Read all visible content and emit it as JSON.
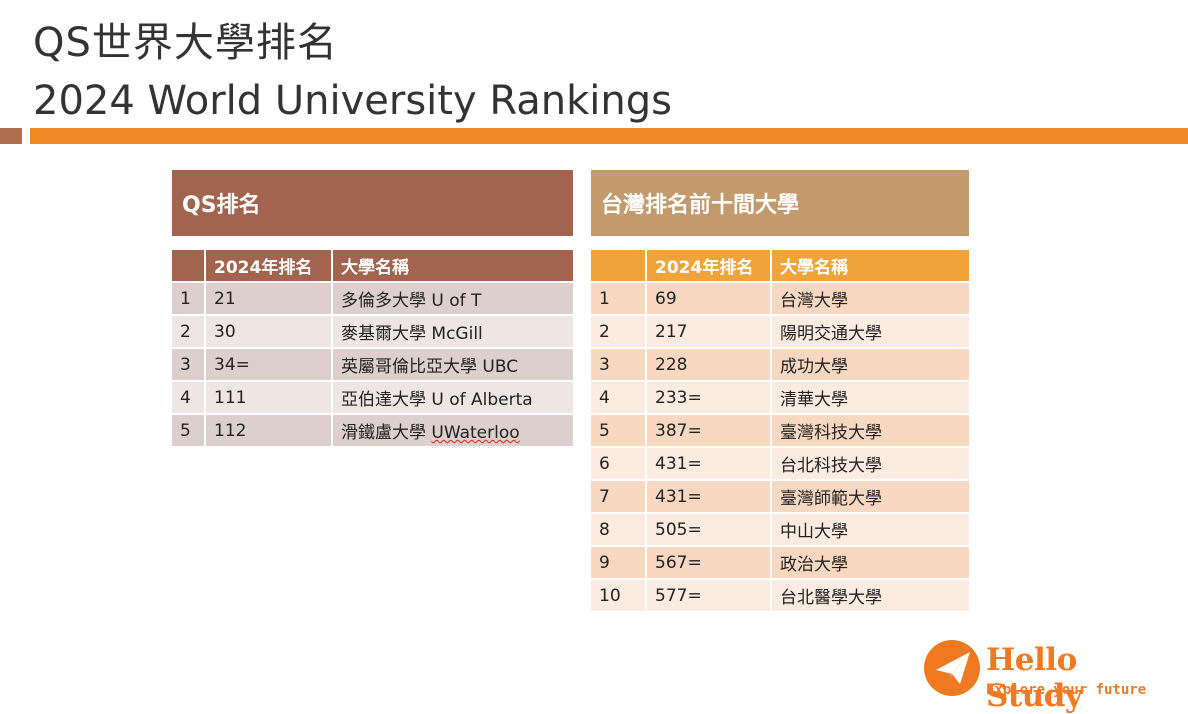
{
  "title_line1": "QS世界大學排名",
  "title_line2": "2024 World University Rankings",
  "left_panel": {
    "heading": "QS排名",
    "col_rank": "2024年排名",
    "col_name": "大學名稱",
    "rows": [
      {
        "idx": "1",
        "rank": "21",
        "name": "多倫多大學 U of T"
      },
      {
        "idx": "2",
        "rank": "30",
        "name": "麥基爾大學 McGill"
      },
      {
        "idx": "3",
        "rank": "34=",
        "name": "英屬哥倫比亞大學 UBC"
      },
      {
        "idx": "4",
        "rank": "111",
        "name": "亞伯達大學 U of Alberta"
      },
      {
        "idx": "5",
        "rank": "112",
        "name_prefix": "滑鐵盧大學 ",
        "name_suffix": "UWaterloo"
      }
    ]
  },
  "right_panel": {
    "heading": "台灣排名前十間大學",
    "col_rank": "2024年排名",
    "col_name": "大學名稱",
    "rows": [
      {
        "idx": "1",
        "rank": "69",
        "name": "台灣大學"
      },
      {
        "idx": "2",
        "rank": "217",
        "name": "陽明交通大學"
      },
      {
        "idx": "3",
        "rank": "228",
        "name": "成功大學"
      },
      {
        "idx": "4",
        "rank": "233=",
        "name": "清華大學"
      },
      {
        "idx": "5",
        "rank": "387=",
        "name": "臺灣科技大學"
      },
      {
        "idx": "6",
        "rank": "431=",
        "name": "台北科技大學"
      },
      {
        "idx": "7",
        "rank": "431=",
        "name": "臺灣師範大學"
      },
      {
        "idx": "8",
        "rank": "505=",
        "name": "中山大學"
      },
      {
        "idx": "9",
        "rank": "567=",
        "name": "政治大學"
      },
      {
        "idx": "10",
        "rank": "577=",
        "name": "台北醫學大學"
      }
    ]
  },
  "logo": {
    "icon": "paper-plane-icon",
    "name": "Hello Study",
    "tagline": "Explore your future"
  },
  "colors": {
    "accent_orange": "#f08a25",
    "left_header": "#a3644f",
    "right_header": "#c39a6c",
    "right_table_header": "#f0a33a"
  }
}
